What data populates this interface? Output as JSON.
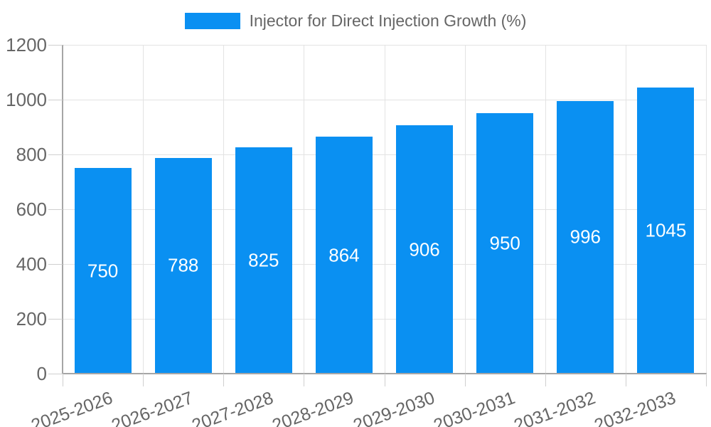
{
  "legend": {
    "label": "Injector for Direct Injection Growth (%)"
  },
  "colors": {
    "bar": "#0a90f2",
    "gridline": "#e3e3e3",
    "axis_line": "#a6a6a6",
    "tick": "#cfcfcf",
    "axis_text": "#666666",
    "value_label_text": "#ffffff",
    "background": "#ffffff"
  },
  "chart_data": {
    "type": "bar",
    "title": "Injector for Direct Injection Growth (%)",
    "series_name": "Injector for Direct Injection Growth (%)",
    "categories": [
      "2025-2026",
      "2026-2027",
      "2027-2028",
      "2028-2029",
      "2029-2030",
      "2030-2031",
      "2031-2032",
      "2032-2033"
    ],
    "values": [
      750,
      788,
      825,
      864,
      906,
      950,
      996,
      1045
    ],
    "xlabel": "",
    "ylabel": "",
    "ylim": [
      0,
      1200
    ],
    "yticks": [
      0,
      200,
      400,
      600,
      800,
      1000,
      1200
    ],
    "grid": "horizontal and vertical",
    "legend_position": "top-center",
    "value_labels": "centered inside bars",
    "x_label_rotation_deg": -20
  }
}
